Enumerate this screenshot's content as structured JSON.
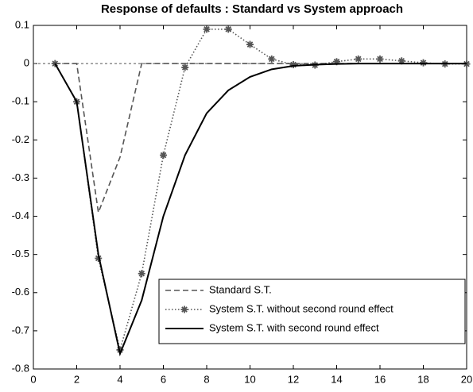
{
  "chart_data": {
    "type": "line",
    "title": "Response of defaults : Standard vs System approach",
    "x": [
      1,
      2,
      3,
      4,
      5,
      6,
      7,
      8,
      9,
      10,
      11,
      12,
      13,
      14,
      15,
      16,
      17,
      18,
      19,
      20
    ],
    "series": [
      {
        "name": "Standard S.T.",
        "color": "#555555",
        "style": "dashed",
        "marker": "none",
        "values": [
          0,
          0,
          -0.39,
          -0.245,
          0,
          0,
          0,
          0,
          0,
          0,
          0,
          0,
          0,
          0,
          0,
          0,
          0,
          0,
          0,
          0
        ]
      },
      {
        "name": "System S.T. without second round effect",
        "color": "#555555",
        "style": "dotted",
        "marker": "star",
        "values": [
          0,
          -0.1,
          -0.51,
          -0.75,
          -0.55,
          -0.24,
          -0.01,
          0.09,
          0.09,
          0.05,
          0.012,
          -0.003,
          -0.004,
          0.005,
          0.012,
          0.012,
          0.007,
          0.002,
          -0.001,
          -0.001
        ]
      },
      {
        "name": "System S.T. with second round effect",
        "color": "#000000",
        "style": "solid",
        "marker": "none",
        "values": [
          0,
          -0.1,
          -0.5,
          -0.76,
          -0.62,
          -0.4,
          -0.24,
          -0.13,
          -0.07,
          -0.035,
          -0.015,
          -0.006,
          -0.003,
          -0.001,
          0,
          0,
          0,
          0,
          0,
          0
        ]
      }
    ],
    "xlim": [
      0,
      20
    ],
    "xticks": [
      0,
      2,
      4,
      6,
      8,
      10,
      12,
      14,
      16,
      18,
      20
    ],
    "ylim": [
      -0.8,
      0.1
    ],
    "yticks": [
      0.1,
      0,
      -0.1,
      -0.2,
      -0.3,
      -0.4,
      -0.5,
      -0.6,
      -0.7,
      -0.8
    ],
    "zero_line": true,
    "legend": "lower right"
  }
}
